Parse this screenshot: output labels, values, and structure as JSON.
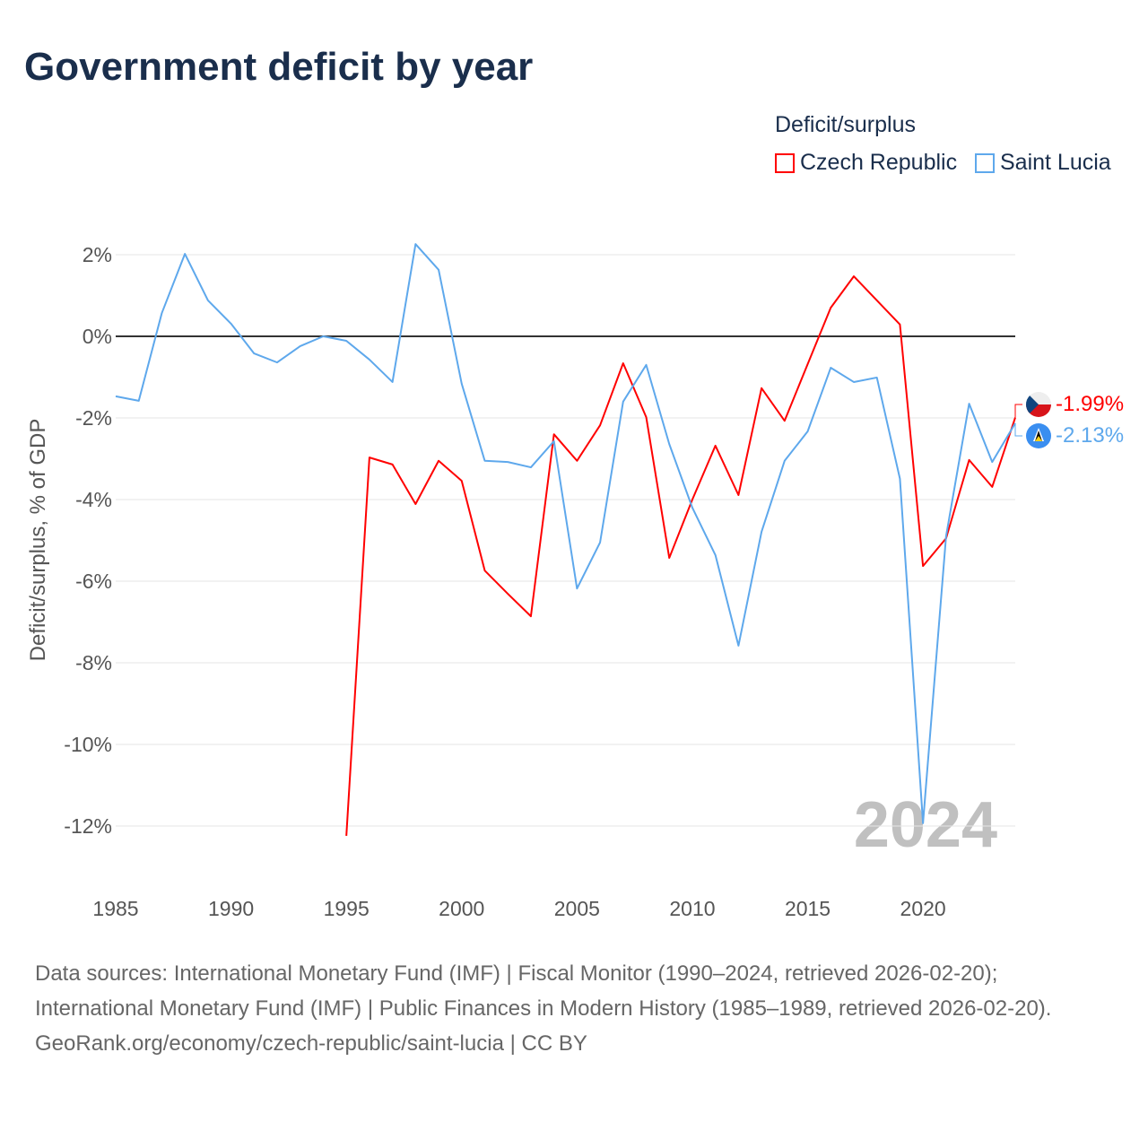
{
  "title": "Government deficit by year",
  "legend": {
    "title": "Deficit/surplus",
    "items": [
      "Czech Republic",
      "Saint Lucia"
    ]
  },
  "year_label": "2024",
  "source_lines": [
    "Data sources: International Monetary Fund (IMF) | Fiscal Monitor (1990–2024, retrieved 2026-02-20); International Monetary Fund (IMF) | Public Finances in Modern History (1985–1989, retrieved 2026-02-20).",
    "GeoRank.org/economy/czech-republic/saint-lucia | CC BY"
  ],
  "chart_data": {
    "type": "line",
    "title": "Government deficit by year",
    "xlabel": "",
    "ylabel": "Deficit/surplus, % of GDP",
    "xlim": [
      1985,
      2024
    ],
    "ylim": [
      -12,
      2
    ],
    "xticks": [
      1985,
      1990,
      1995,
      2000,
      2005,
      2010,
      2015,
      2020
    ],
    "yticks": [
      2,
      0,
      -2,
      -4,
      -6,
      -8,
      -10,
      -12
    ],
    "ytick_labels": [
      "2%",
      "0%",
      "-2%",
      "-4%",
      "-6%",
      "-8%",
      "-10%",
      "-12%"
    ],
    "series": [
      {
        "name": "Czech Republic",
        "color": "#ff0000",
        "end_label": "-1.99%",
        "x": [
          1995,
          1996,
          1997,
          1998,
          1999,
          2000,
          2001,
          2002,
          2003,
          2004,
          2005,
          2006,
          2007,
          2008,
          2009,
          2010,
          2011,
          2012,
          2013,
          2014,
          2015,
          2016,
          2017,
          2018,
          2019,
          2020,
          2021,
          2022,
          2023,
          2024
        ],
        "values": [
          -12.24,
          -2.97,
          -3.14,
          -4.11,
          -3.05,
          -3.54,
          -5.74,
          -6.31,
          -6.86,
          -2.4,
          -3.05,
          -2.18,
          -0.66,
          -1.98,
          -5.43,
          -4.0,
          -2.68,
          -3.89,
          -1.27,
          -2.07,
          -0.68,
          0.7,
          1.47,
          0.88,
          0.29,
          -5.63,
          -4.95,
          -3.03,
          -3.69,
          -1.99
        ]
      },
      {
        "name": "Saint Lucia",
        "color": "#5ea8ec",
        "end_label": "-2.13%",
        "x": [
          1985,
          1986,
          1987,
          1988,
          1989,
          1990,
          1991,
          1992,
          1993,
          1994,
          1995,
          1996,
          1997,
          1998,
          1999,
          2000,
          2001,
          2002,
          2003,
          2004,
          2005,
          2006,
          2007,
          2008,
          2009,
          2010,
          2011,
          2012,
          2013,
          2014,
          2015,
          2016,
          2017,
          2018,
          2019,
          2020,
          2021,
          2022,
          2023,
          2024
        ],
        "values": [
          -1.47,
          -1.58,
          0.57,
          2.02,
          0.88,
          0.31,
          -0.42,
          -0.64,
          -0.24,
          0.0,
          -0.11,
          -0.57,
          -1.12,
          2.26,
          1.63,
          -1.16,
          -3.05,
          -3.08,
          -3.21,
          -2.57,
          -6.18,
          -5.05,
          -1.6,
          -0.7,
          -2.64,
          -4.2,
          -5.36,
          -7.58,
          -4.79,
          -3.05,
          -2.33,
          -0.77,
          -1.12,
          -1.01,
          -3.49,
          -11.93,
          -4.9,
          -1.65,
          -3.08,
          -2.13
        ]
      }
    ]
  }
}
